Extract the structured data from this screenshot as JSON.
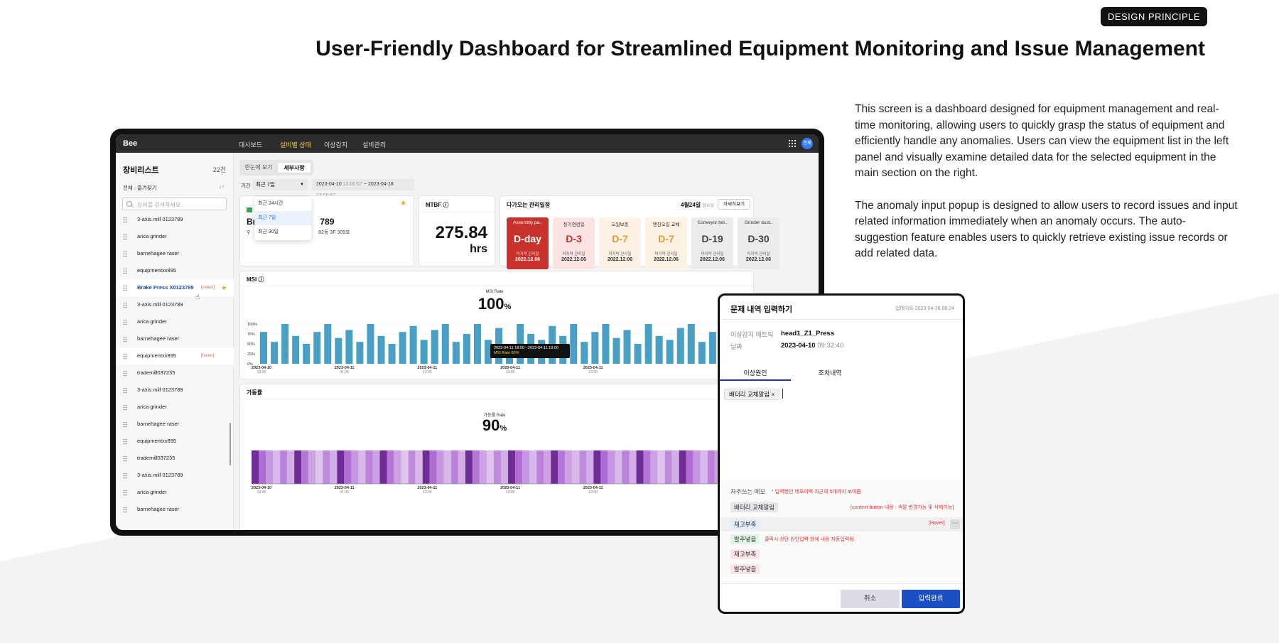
{
  "hero": {
    "badge": "DESIGN PRINCIPLE",
    "title": "User-Friendly Dashboard for Streamlined Equipment Monitoring and Issue Management",
    "paragraph1": "This screen is a dashboard designed for equipment management and real-time monitoring, allowing users to quickly grasp the status of equipment and efficiently handle any anomalies. Users can view the equipment list in the left panel and visually examine detailed data for the selected equipment in the main section on the right.",
    "paragraph2": "The anomaly input popup is designed to allow users to record issues and input related information immediately when an anomaly occurs. The auto-suggestion feature enables users to quickly retrieve existing issue records or add related data."
  },
  "topbar": {
    "logo": "Bee",
    "nav": [
      "대시보드",
      "설비별 상태",
      "이상감지",
      "설비관리"
    ],
    "active_nav": 1,
    "avatar": "전체"
  },
  "sidebar": {
    "title": "장비리스트",
    "count": "22건",
    "filter": "전체 : 즐겨찾기",
    "sort_icon": "sort-icon",
    "search_placeholder": "장비를 검색하세요",
    "items": [
      {
        "label": "3-axis mill 0123789"
      },
      {
        "label": "anca grinder"
      },
      {
        "label": "barnehagee raser"
      },
      {
        "label": "equipmentxx895"
      },
      {
        "label": "Brake Press X0123789",
        "tag": "[select]",
        "selected": true
      },
      {
        "label": "3-axis mill 0123789"
      },
      {
        "label": "anca grinder"
      },
      {
        "label": "barnehagee raser"
      },
      {
        "label": "equipmentxx895",
        "tag": "[hover]",
        "hover": true
      },
      {
        "label": "trademill037235"
      },
      {
        "label": "3-axis mill 0123789"
      },
      {
        "label": "anca grinder"
      },
      {
        "label": "barnehagee raser"
      },
      {
        "label": "equipmentxx895"
      },
      {
        "label": "trademill037235"
      },
      {
        "label": "3-axis mill 0123789"
      },
      {
        "label": "anca grinder"
      },
      {
        "label": "barnehagee raser"
      }
    ]
  },
  "main": {
    "view_toggle": [
      "한눈에 보기",
      "세부사항"
    ],
    "period_label": "기간",
    "period_value": "최근 7일",
    "period_options": [
      "최근 24시간",
      "최근 7일",
      "최근 30일"
    ],
    "range_start": "2023-04-10",
    "range_start_time": "13:00:57",
    "range_sep": "~",
    "range_end": "2023-04-18",
    "range_end_time": "13:00:57",
    "equipment": {
      "name_start": "Br",
      "name_end": "789",
      "location_end": "82동 3F 309호"
    },
    "mtbf": {
      "label": "MTBF",
      "value": "275.84",
      "unit": "hrs"
    },
    "schedule": {
      "label": "다가오는 관리일정",
      "date": "4월24일",
      "date_sub": "월요일",
      "more": "자세히보기",
      "items": [
        {
          "name": "Assembly pa..",
          "d": "D-day",
          "label": "마지막 관리일",
          "date": "2022.12.06",
          "bg": "#c8322c",
          "fg": "#ffffff"
        },
        {
          "name": "정기점검일",
          "d": "D-3",
          "label": "마지막 관리일",
          "date": "2022.12.06",
          "bg": "#fbe3e4",
          "fg": "#c8322c"
        },
        {
          "name": "오일보충",
          "d": "D-7",
          "label": "마지막 관리일",
          "date": "2022.12.06",
          "bg": "#fdf1e3",
          "fg": "#e29a35"
        },
        {
          "name": "엔진오일 교체",
          "d": "D-7",
          "label": "마지막 관리일",
          "date": "2022.12.06",
          "bg": "#fdf1e3",
          "fg": "#e29a35"
        },
        {
          "name": "Conveyor bel..",
          "d": "D-19",
          "label": "마지막 관리일",
          "date": "2022.12.06",
          "bg": "#ececec",
          "fg": "#444444"
        },
        {
          "name": "Grinder dust..",
          "d": "D-30",
          "label": "마지막 관리일",
          "date": "2022.12.06",
          "bg": "#ececec",
          "fg": "#444444"
        }
      ]
    },
    "msi": {
      "label": "MSI",
      "rate_label": "MSI Rate",
      "rate_value": "100",
      "rate_unit": "%",
      "tooltip_line1": "2023-04-11 18:00 - 2023-04-11 19:00",
      "tooltip_line2": "MSI Rate 60%"
    },
    "operation": {
      "label": "가동률",
      "rate_label": "가동률 Rate",
      "rate_value": "90",
      "rate_unit": "%"
    }
  },
  "chart_data": [
    {
      "type": "bar",
      "title": "MSI Rate",
      "ylabel": "",
      "yticks": [
        "100%",
        "75%",
        "50%",
        "25%",
        "0%"
      ],
      "ylim": [
        0,
        100
      ],
      "xticks": [
        {
          "d": "2023-04-10",
          "t": "13:00"
        },
        {
          "d": "2023-04-11",
          "t": "01:00"
        },
        {
          "d": "2023-04-11",
          "t": "13:00"
        },
        {
          "d": "2023-04-11",
          "t": "13:00"
        },
        {
          "d": "2023-04-11",
          "t": "13:00"
        }
      ],
      "values": [
        80,
        55,
        100,
        70,
        50,
        80,
        100,
        65,
        85,
        55,
        100,
        70,
        50,
        80,
        95,
        60,
        85,
        100,
        55,
        75,
        100,
        60,
        90,
        50,
        100,
        75,
        60,
        95,
        70,
        100,
        55,
        80,
        100,
        65,
        85,
        50,
        100,
        70,
        60,
        90,
        100,
        55,
        80,
        100,
        60,
        85
      ]
    },
    {
      "type": "heatmap",
      "title": "가동률 Rate",
      "xticks": [
        {
          "d": "2023-04-10",
          "t": "13:00"
        },
        {
          "d": "2023-04-11",
          "t": "01:00"
        },
        {
          "d": "2023-04-11",
          "t": "13:00"
        },
        {
          "d": "2023-04-11",
          "t": "13:00"
        },
        {
          "d": "2023-04-11",
          "t": "13:00"
        }
      ],
      "values": [
        1,
        0.55,
        0.35,
        0.2,
        0.45,
        0.25,
        1,
        0.5,
        0.3,
        0.15,
        0.4,
        0.25,
        1,
        0.55,
        0.35,
        0.2,
        0.45,
        0.3,
        1,
        0.5,
        0.3,
        0.15,
        0.4,
        0.2,
        1,
        0.55,
        0.35,
        0.2,
        0.45,
        0.25,
        1,
        0.5,
        0.3,
        0.15,
        0.4,
        0.25,
        1,
        0.55,
        0.35,
        0.2,
        0.45,
        0.3,
        1,
        0.5,
        0.3,
        0.2,
        0.4,
        0.25,
        1,
        0.55,
        0.35,
        0.2,
        0.45,
        0.25,
        1,
        0.5,
        0.3,
        0.15,
        0.4,
        0.25,
        1,
        0.55,
        0.35,
        0.2,
        0.45,
        0.3,
        1,
        0.5,
        0.3,
        0.15
      ]
    }
  ],
  "popup": {
    "title": "문제 내역 입력하기",
    "updated": "업데이트 2023-04-26 08:24",
    "metric_key": "이상감지 매트릭",
    "metric_value": "head1_Z1_Press",
    "date_key": "날짜",
    "date_value": "2023-04-10",
    "date_time": "09:32:40",
    "tabs": [
      "이상원인",
      "조치내역"
    ],
    "chip": "배터리 교체알림",
    "chip_close": "×",
    "memo_label": "자주쓰는 메모",
    "memo_note": "* 입력했던 메모이력 최근의 5개까지 보여줌",
    "memos": [
      {
        "text": "배터리 교체알림",
        "style": "m-gray"
      },
      {
        "text": "재고부족",
        "style": "m-blue"
      },
      {
        "text": "발주넣음",
        "style": "m-green"
      },
      {
        "text": "재고부족",
        "style": "m-pink"
      },
      {
        "text": "발주넣음",
        "style": "m-pink"
      }
    ],
    "context_note": "[context button 내용 : 색깔 변경가능 및 삭제기능]",
    "hover_note": "[Hover]",
    "click_note": "클릭시 상단 원인입력 창에 내용 자동입력됨",
    "cancel": "취소",
    "submit": "입력완료"
  }
}
